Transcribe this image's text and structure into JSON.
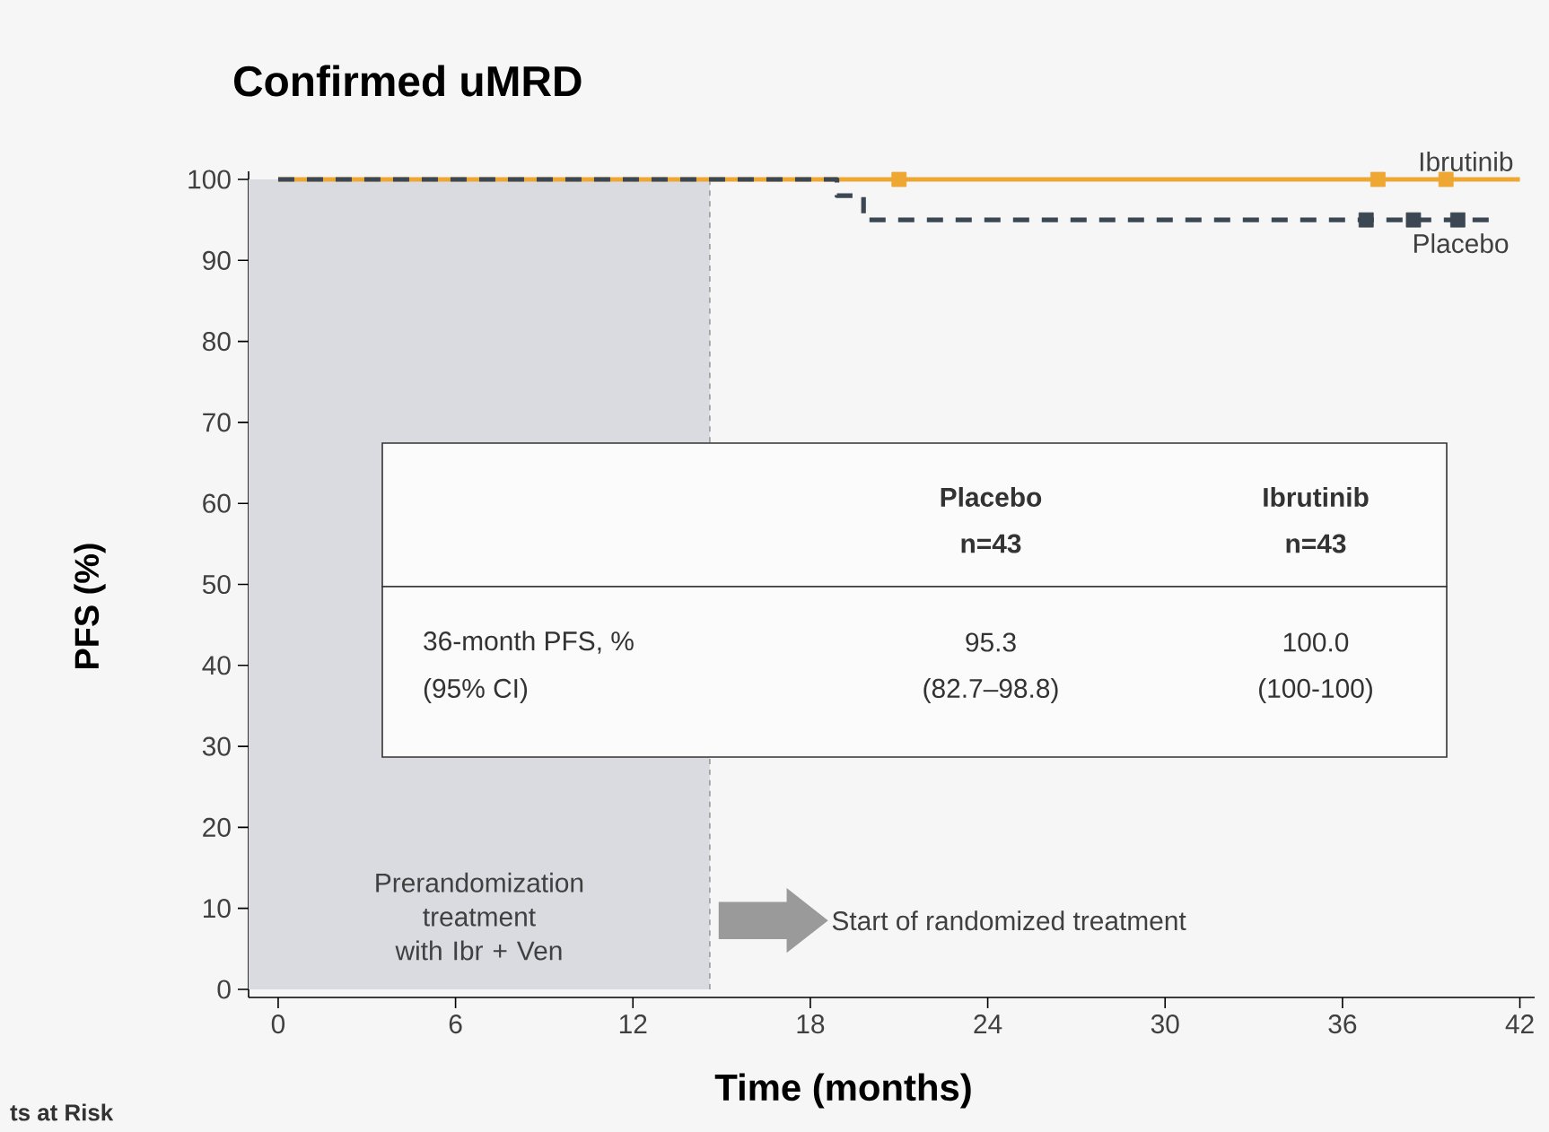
{
  "chart_data": {
    "type": "step",
    "title": "Confirmed uMRD",
    "xlabel": "Time (months)",
    "ylabel": "PFS (%)",
    "xlim": [
      -1,
      42.5
    ],
    "ylim": [
      -1,
      101
    ],
    "xticks": [
      0,
      6,
      12,
      18,
      24,
      30,
      36,
      42
    ],
    "yticks": [
      0,
      10,
      20,
      30,
      40,
      50,
      60,
      70,
      80,
      90,
      100
    ],
    "series": [
      {
        "name": "Ibrutinib",
        "color": "#eea733",
        "line_style": "solid",
        "x": [
          0,
          42
        ],
        "values": [
          100,
          100
        ]
      },
      {
        "name": "Placebo",
        "color": "#3b4752",
        "line_style": "dashed",
        "x": [
          0,
          18.9,
          19.8,
          41
        ],
        "values": [
          100,
          98,
          95,
          95
        ]
      },
      {
        "type": "scatter",
        "color": "#eea733",
        "marker": "square",
        "x": [
          21,
          37.2,
          39.5
        ],
        "values": [
          100,
          100,
          100
        ]
      },
      {
        "type": "scatter",
        "color": "#3b4752",
        "marker": "square",
        "x": [
          36.8,
          38.4,
          39.9
        ],
        "values": [
          95,
          95,
          95
        ]
      }
    ],
    "bands": [
      {
        "axis": "x",
        "from": -1,
        "to": 14.6,
        "label": "Prerandomization treatment with Ibr + Ven",
        "color": "#d9dbe0"
      }
    ],
    "ref_lines": [
      {
        "axis": "x",
        "value": 14.6,
        "color": "#9a9a9a",
        "line_style": "dashed"
      }
    ],
    "annotations": [
      "Placebo",
      "n=43",
      "Ibrutinib",
      "n=43",
      "36-month PFS, %",
      "(95% CI)",
      "95.3",
      "(82.7–98.8)",
      "100.0",
      "(100-100)",
      "ts at Risk",
      "Start of randomized treatment"
    ]
  }
}
